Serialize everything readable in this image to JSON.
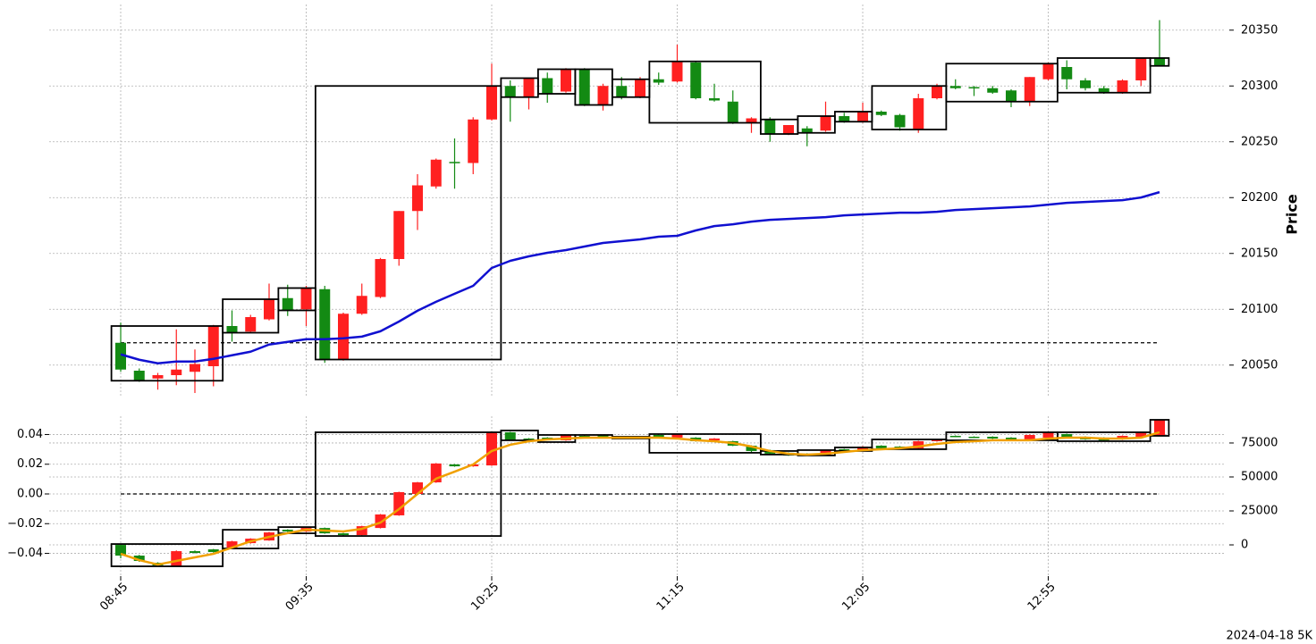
{
  "chart_data": [
    {
      "type": "candlestick",
      "ylabel": "Price",
      "yaxis_side": "right",
      "grid": true,
      "up_color": "#ff2020",
      "down_color": "#138a13",
      "ylim": [
        20021,
        20373
      ],
      "yticks": [
        20050,
        20100,
        20150,
        20200,
        20250,
        20300,
        20350
      ],
      "open": [
        20070,
        20045,
        20038,
        20041,
        20044,
        20049,
        20085,
        20080,
        20091,
        20110,
        20100,
        20118,
        20055,
        20096,
        20111,
        20145,
        20188,
        20210,
        20232,
        20231,
        20270,
        20300,
        20290,
        20307,
        20295,
        20315,
        20283,
        20300,
        20290,
        20306,
        20304,
        20321,
        20289,
        20286,
        20267,
        20270,
        20257,
        20262,
        20260,
        20273,
        20268,
        20277,
        20274,
        20261,
        20289,
        20300,
        20299,
        20298,
        20296,
        20286,
        20306,
        20317,
        20305,
        20298,
        20294,
        20305,
        20325
      ],
      "high": [
        20088,
        20047,
        20043,
        20082,
        20064,
        20086,
        20099,
        20095,
        20123,
        20122,
        20121,
        20121,
        20097,
        20123,
        20146,
        20188,
        20221,
        20235,
        20253,
        20272,
        20320,
        20305,
        20307,
        20312,
        20316,
        20316,
        20302,
        20308,
        20308,
        20312,
        20337,
        20322,
        20302,
        20296,
        20272,
        20272,
        20265,
        20264,
        20286,
        20276,
        20285,
        20278,
        20275,
        20293,
        20302,
        20306,
        20300,
        20300,
        20297,
        20308,
        20321,
        20323,
        20307,
        20300,
        20306,
        20325,
        20359
      ],
      "low": [
        20044,
        20035,
        20028,
        20032,
        20025,
        20031,
        20071,
        20079,
        20090,
        20094,
        20085,
        20052,
        20054,
        20095,
        20110,
        20139,
        20171,
        20208,
        20208,
        20221,
        20269,
        20268,
        20279,
        20285,
        20294,
        20282,
        20278,
        20288,
        20289,
        20301,
        20303,
        20288,
        20286,
        20266,
        20258,
        20250,
        20256,
        20246,
        20259,
        20267,
        20267,
        20273,
        20260,
        20258,
        20288,
        20297,
        20291,
        20293,
        20281,
        20282,
        20305,
        20297,
        20296,
        20293,
        20293,
        20300,
        20318
      ],
      "close": [
        20046,
        20036,
        20041,
        20046,
        20051,
        20085,
        20079,
        20093,
        20109,
        20099,
        20119,
        20055,
        20096,
        20112,
        20145,
        20188,
        20211,
        20234,
        20232,
        20270,
        20300,
        20290,
        20307,
        20293,
        20315,
        20283,
        20300,
        20290,
        20306,
        20303,
        20322,
        20289,
        20287,
        20267,
        20271,
        20257,
        20265,
        20258,
        20273,
        20268,
        20277,
        20274,
        20263,
        20289,
        20300,
        20298,
        20298,
        20294,
        20286,
        20308,
        20320,
        20306,
        20298,
        20294,
        20305,
        20325,
        20318
      ],
      "boxes": [
        {
          "start": 0,
          "end": 5,
          "low": 20036,
          "high": 20085
        },
        {
          "start": 6,
          "end": 8,
          "low": 20079,
          "high": 20109
        },
        {
          "start": 9,
          "end": 10,
          "low": 20099,
          "high": 20119
        },
        {
          "start": 11,
          "end": 20,
          "low": 20055,
          "high": 20300
        },
        {
          "start": 21,
          "end": 22,
          "low": 20290,
          "high": 20307
        },
        {
          "start": 23,
          "end": 24,
          "low": 20293,
          "high": 20315
        },
        {
          "start": 25,
          "end": 26,
          "low": 20283,
          "high": 20315
        },
        {
          "start": 27,
          "end": 28,
          "low": 20290,
          "high": 20306
        },
        {
          "start": 29,
          "end": 34,
          "low": 20267,
          "high": 20322
        },
        {
          "start": 35,
          "end": 36,
          "low": 20257,
          "high": 20270
        },
        {
          "start": 37,
          "end": 38,
          "low": 20258,
          "high": 20273
        },
        {
          "start": 39,
          "end": 40,
          "low": 20268,
          "high": 20277
        },
        {
          "start": 41,
          "end": 44,
          "low": 20261,
          "high": 20300
        },
        {
          "start": 45,
          "end": 50,
          "low": 20286,
          "high": 20320
        },
        {
          "start": 51,
          "end": 55,
          "low": 20294,
          "high": 20325
        },
        {
          "start": 56,
          "end": 56,
          "low": 20318,
          "high": 20325
        }
      ],
      "lines": [
        {
          "color": "#1010d0",
          "values": [
            20059.6,
            20054.8,
            20051.6,
            20053.2,
            20053.2,
            20055.6,
            20058.8,
            20062,
            20068.4,
            20070.8,
            20073.2,
            20073.2,
            20074,
            20075.5,
            20080.3,
            20089,
            20098.7,
            20106.7,
            20113.9,
            20121,
            20137,
            20143.4,
            20147.4,
            20150.6,
            20153,
            20156.2,
            20159.4,
            20161,
            20162.6,
            20165,
            20165.8,
            20170.6,
            20174.5,
            20176.1,
            20178.5,
            20180.1,
            20180.9,
            20181.7,
            20182.5,
            20184.1,
            20184.9,
            20185.7,
            20186.5,
            20186.5,
            20187.3,
            20188.9,
            20189.7,
            20190.5,
            20191.3,
            20192.1,
            20193.7,
            20195.3,
            20196.1,
            20196.9,
            20197.7,
            20200.1,
            20204.9
          ]
        }
      ],
      "hline": 20070
    },
    {
      "type": "candlestick",
      "yaxis_side": "left",
      "grid": true,
      "up_color": "#ff2020",
      "down_color": "#138a13",
      "categories": [
        "08:45",
        null,
        null,
        null,
        null,
        null,
        null,
        null,
        null,
        null,
        "09:35",
        null,
        null,
        null,
        null,
        null,
        null,
        null,
        null,
        null,
        "10:25",
        null,
        null,
        null,
        null,
        null,
        null,
        null,
        null,
        null,
        "11:15",
        null,
        null,
        null,
        null,
        null,
        null,
        null,
        null,
        null,
        "12:05",
        null,
        null,
        null,
        null,
        null,
        null,
        null,
        null,
        null,
        "12:55",
        null,
        null,
        null,
        null,
        null,
        null
      ],
      "ylim": [
        -0.0553,
        0.0523
      ],
      "yticks": [
        {
          "value": -0.04,
          "label": "−0.04"
        },
        {
          "value": -0.02,
          "label": "−0.02"
        },
        {
          "value": 0,
          "label": "0.00"
        },
        0.02,
        0.04
      ],
      "y2lim": [
        -23000,
        94700
      ],
      "y2ticks": [
        0,
        25000,
        50000,
        75000
      ],
      "open": [
        -0.0343,
        -0.0415,
        -0.0463,
        -0.0487,
        -0.0385,
        -0.0373,
        -0.0361,
        -0.0331,
        -0.0313,
        -0.0241,
        -0.0253,
        -0.0229,
        -0.0265,
        -0.0277,
        -0.0229,
        -0.0144,
        0,
        0.0078,
        0.0199,
        0.0186,
        0.0192,
        0.0415,
        0.0373,
        0.0379,
        0.0361,
        0.0391,
        0.0397,
        0.0385,
        0.0379,
        0.0397,
        0.0379,
        0.0379,
        0.0361,
        0.0355,
        0.0325,
        0.0295,
        0.0277,
        0.0271,
        0.0259,
        0.0301,
        0.0289,
        0.0325,
        0.0319,
        0.0307,
        0.0355,
        0.0391,
        0.0385,
        0.0385,
        0.0379,
        0.0367,
        0.0379,
        0.0403,
        0.0385,
        0.0379,
        0.0367,
        0.0385,
        0.0391
      ],
      "high": [
        -0.0335,
        -0.041,
        -0.046,
        -0.038,
        -0.038,
        -0.037,
        -0.0315,
        -0.0298,
        -0.0255,
        -0.0238,
        -0.0226,
        -0.0226,
        -0.0262,
        -0.0214,
        -0.0135,
        0.0015,
        0.0081,
        0.0208,
        0.0202,
        0.0202,
        0.0418,
        0.0418,
        0.0376,
        0.0382,
        0.04,
        0.0394,
        0.04,
        0.0388,
        0.0388,
        0.04,
        0.0406,
        0.0382,
        0.0376,
        0.0358,
        0.0328,
        0.0298,
        0.028,
        0.0274,
        0.0298,
        0.0304,
        0.0322,
        0.0328,
        0.0322,
        0.0358,
        0.037,
        0.0394,
        0.0388,
        0.0388,
        0.0382,
        0.04,
        0.0418,
        0.0406,
        0.0388,
        0.0382,
        0.0394,
        0.0418,
        0.0502
      ],
      "low": [
        -0.0433,
        -0.0457,
        -0.0487,
        -0.049,
        -0.04,
        -0.0395,
        -0.0365,
        -0.0335,
        -0.0315,
        -0.0256,
        -0.0256,
        -0.0268,
        -0.028,
        -0.028,
        -0.0232,
        -0.0147,
        -0.0003,
        0.0075,
        0.0183,
        0.0183,
        0.0189,
        0.0358,
        0.0358,
        0.0364,
        0.0358,
        0.0376,
        0.0382,
        0.0376,
        0.0376,
        0.0382,
        0.0376,
        0.0352,
        0.0358,
        0.0322,
        0.0277,
        0.0268,
        0.0256,
        0.0256,
        0.0256,
        0.0286,
        0.0286,
        0.0304,
        0.0298,
        0.0304,
        0.0352,
        0.0382,
        0.0376,
        0.037,
        0.0364,
        0.0364,
        0.0376,
        0.0376,
        0.0364,
        0.0358,
        0.0364,
        0.0382,
        0.0388
      ],
      "close": [
        -0.0415,
        -0.0451,
        -0.0481,
        -0.0385,
        -0.0397,
        -0.0391,
        -0.0319,
        -0.0301,
        -0.0259,
        -0.0253,
        -0.0229,
        -0.0265,
        -0.0277,
        -0.0217,
        -0.0138,
        0.0012,
        0.0078,
        0.0205,
        0.0186,
        0.0199,
        0.0415,
        0.0361,
        0.0361,
        0.0367,
        0.0397,
        0.0379,
        0.0385,
        0.0379,
        0.0385,
        0.0385,
        0.0403,
        0.0355,
        0.0373,
        0.0325,
        0.0289,
        0.0271,
        0.0259,
        0.0259,
        0.0295,
        0.0289,
        0.0319,
        0.0307,
        0.0301,
        0.0355,
        0.0367,
        0.0385,
        0.0379,
        0.0373,
        0.0367,
        0.0397,
        0.0415,
        0.0379,
        0.0367,
        0.0361,
        0.0391,
        0.0415,
        0.0499
      ],
      "boxes": [
        {
          "start": 0,
          "end": 5,
          "low": -0.0487,
          "high": -0.0337
        },
        {
          "start": 6,
          "end": 8,
          "low": -0.0367,
          "high": -0.0241
        },
        {
          "start": 9,
          "end": 10,
          "low": -0.0265,
          "high": -0.0223
        },
        {
          "start": 11,
          "end": 20,
          "low": -0.0283,
          "high": 0.0415
        },
        {
          "start": 21,
          "end": 22,
          "low": 0.0361,
          "high": 0.0427
        },
        {
          "start": 23,
          "end": 24,
          "low": 0.0349,
          "high": 0.0397
        },
        {
          "start": 25,
          "end": 26,
          "low": 0.0379,
          "high": 0.0397
        },
        {
          "start": 27,
          "end": 28,
          "low": 0.0373,
          "high": 0.0385
        },
        {
          "start": 29,
          "end": 34,
          "low": 0.0277,
          "high": 0.0403
        },
        {
          "start": 35,
          "end": 36,
          "low": 0.0265,
          "high": 0.0289
        },
        {
          "start": 37,
          "end": 38,
          "low": 0.0259,
          "high": 0.0295
        },
        {
          "start": 39,
          "end": 40,
          "low": 0.0289,
          "high": 0.0313
        },
        {
          "start": 41,
          "end": 44,
          "low": 0.0301,
          "high": 0.0367
        },
        {
          "start": 45,
          "end": 50,
          "low": 0.0361,
          "high": 0.0415
        },
        {
          "start": 51,
          "end": 55,
          "low": 0.0355,
          "high": 0.0415
        },
        {
          "start": 56,
          "end": 56,
          "low": 0.0391,
          "high": 0.0499
        }
      ],
      "lines": [
        {
          "color": "#f0a000",
          "axis": "y2",
          "values": [
            -6600,
            -11200,
            -14500,
            -11800,
            -9200,
            -6600,
            -2000,
            2600,
            5900,
            8600,
            11200,
            10500,
            9900,
            11800,
            16400,
            26300,
            37500,
            48700,
            53900,
            59200,
            69100,
            73700,
            76300,
            77600,
            78300,
            78900,
            78900,
            78900,
            78900,
            78900,
            78300,
            77000,
            76300,
            75000,
            72400,
            69100,
            67100,
            66400,
            67100,
            68400,
            69700,
            70400,
            71100,
            72400,
            74300,
            75700,
            76300,
            77000,
            77000,
            77000,
            78300,
            78900,
            78900,
            78300,
            78300,
            78900,
            82900
          ]
        }
      ],
      "hline": 0,
      "footnote": "2024-04-18 5K"
    }
  ]
}
